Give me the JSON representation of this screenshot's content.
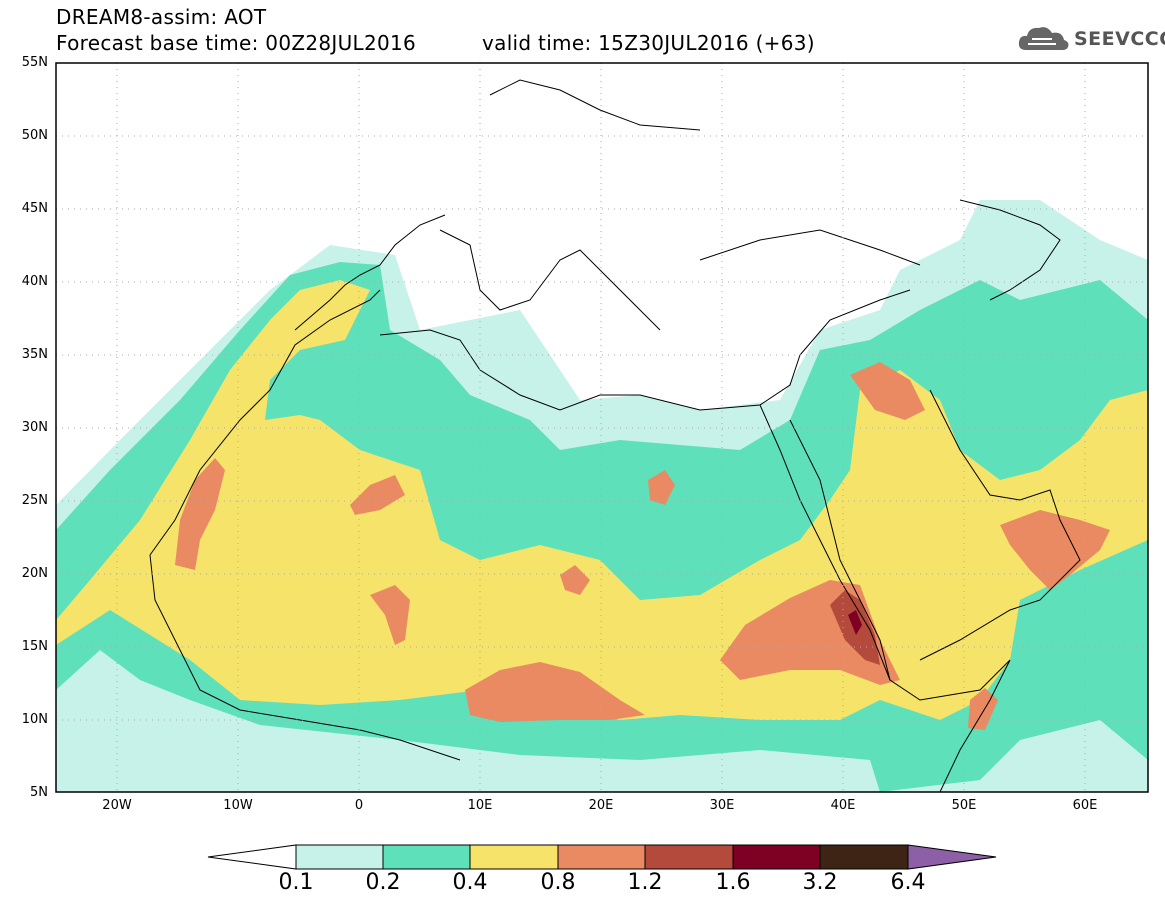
{
  "header": {
    "title_line1": "DREAM8-assim: AOT",
    "title_line2": "Forecast base time: 00Z28JUL2016",
    "valid_time": "valid time: 15Z30JUL2016 (+63)"
  },
  "logo": {
    "text": "SEEVCCC",
    "icon": "cloud-logo-icon"
  },
  "axes": {
    "lat_labels": [
      "55N",
      "50N",
      "45N",
      "40N",
      "35N",
      "30N",
      "25N",
      "20N",
      "15N",
      "10N",
      "5N"
    ],
    "lat_values": [
      55,
      50,
      45,
      40,
      35,
      30,
      25,
      20,
      15,
      10,
      5
    ],
    "lon_labels": [
      "20W",
      "10W",
      "0",
      "10E",
      "20E",
      "30E",
      "40E",
      "50E",
      "60E"
    ],
    "lon_values": [
      -20,
      -10,
      0,
      10,
      20,
      30,
      40,
      50,
      60
    ],
    "lon_range": [
      -25,
      65
    ],
    "lat_range": [
      5,
      55
    ],
    "grid": "dotted"
  },
  "colorbar": {
    "labels": [
      "0.1",
      "0.2",
      "0.4",
      "0.8",
      "1.2",
      "1.6",
      "3.2",
      "6.4"
    ],
    "colors": [
      "#c6f2ea",
      "#5ee0bb",
      "#f6e36a",
      "#ea8a62",
      "#b44a3c",
      "#7e0023",
      "#3d2414",
      "#8c5fa6"
    ]
  },
  "colors": {
    "c1": "#c6f2ea",
    "c2": "#5ee0bb",
    "c3": "#f6e36a",
    "c4": "#ea8a62",
    "c5": "#b44a3c",
    "c6": "#7e0023"
  }
}
